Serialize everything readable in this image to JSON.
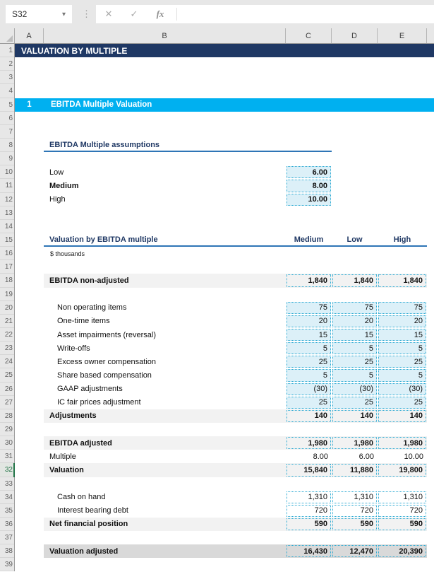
{
  "formula_bar": {
    "name_box": "S32",
    "cancel_icon": "✕",
    "confirm_icon": "✓",
    "fx_icon": "fx",
    "caret_icon": "▾",
    "dots_icon": "⋮",
    "formula_value": ""
  },
  "sheet": {
    "columns": [
      "A",
      "B",
      "C",
      "D",
      "E"
    ],
    "colors": {
      "title_banner": "#1F3864",
      "section_banner": "#00B0F0",
      "header_underline": "#2E75B6",
      "input_fill": "#DCF0F8",
      "dotted_border": "#2AA9D2",
      "subtotal_band": "#F2F2F2",
      "grand_band": "#D9D9D9",
      "selected_header_green": "#217346"
    },
    "rows": [
      {
        "n": "1",
        "type": "banner1",
        "label": "VALUATION BY MULTIPLE"
      },
      {
        "n": "2",
        "type": "empty"
      },
      {
        "n": "3",
        "type": "empty"
      },
      {
        "n": "4",
        "type": "empty"
      },
      {
        "n": "5",
        "type": "banner5",
        "num": "1",
        "label": "EBITDA Multiple Valuation"
      },
      {
        "n": "6",
        "type": "empty"
      },
      {
        "n": "7",
        "type": "empty"
      },
      {
        "n": "8",
        "type": "sheader",
        "label": "EBITDA Multiple assumptions"
      },
      {
        "n": "9",
        "type": "empty"
      },
      {
        "n": "10",
        "type": "assumption",
        "label": "Low",
        "bold": false,
        "values": [
          "6.00"
        ]
      },
      {
        "n": "11",
        "type": "assumption",
        "label": "Medium",
        "bold": true,
        "values": [
          "8.00"
        ]
      },
      {
        "n": "12",
        "type": "assumption",
        "label": "High",
        "bold": false,
        "values": [
          "10.00"
        ]
      },
      {
        "n": "13",
        "type": "empty"
      },
      {
        "n": "14",
        "type": "empty"
      },
      {
        "n": "15",
        "type": "theader",
        "label": "Valuation by EBITDA multiple",
        "cols": [
          "Medium",
          "Low",
          "High"
        ]
      },
      {
        "n": "16",
        "type": "unit",
        "label": "$ thousands"
      },
      {
        "n": "17",
        "type": "empty"
      },
      {
        "n": "18",
        "type": "subtotal",
        "label": "EBITDA non-adjusted",
        "values": [
          "1,840",
          "1,840",
          "1,840"
        ]
      },
      {
        "n": "19",
        "type": "empty"
      },
      {
        "n": "20",
        "type": "input",
        "label": "Non operating items",
        "values": [
          "75",
          "75",
          "75"
        ]
      },
      {
        "n": "21",
        "type": "input",
        "label": "One-time items",
        "values": [
          "20",
          "20",
          "20"
        ]
      },
      {
        "n": "22",
        "type": "input",
        "label": "Asset impairments (reversal)",
        "values": [
          "15",
          "15",
          "15"
        ]
      },
      {
        "n": "23",
        "type": "input",
        "label": "Write-offs",
        "values": [
          "5",
          "5",
          "5"
        ]
      },
      {
        "n": "24",
        "type": "input",
        "label": "Excess owner compensation",
        "values": [
          "25",
          "25",
          "25"
        ]
      },
      {
        "n": "25",
        "type": "input",
        "label": "Share based compensation",
        "values": [
          "5",
          "5",
          "5"
        ]
      },
      {
        "n": "26",
        "type": "input",
        "label": "GAAP adjustments",
        "values": [
          "(30)",
          "(30)",
          "(30)"
        ]
      },
      {
        "n": "27",
        "type": "input",
        "label": "IC fair prices adjustment",
        "values": [
          "25",
          "25",
          "25"
        ]
      },
      {
        "n": "28",
        "type": "subtotal",
        "label": "Adjustments",
        "values": [
          "140",
          "140",
          "140"
        ]
      },
      {
        "n": "29",
        "type": "empty"
      },
      {
        "n": "30",
        "type": "subtotal",
        "label": "EBITDA adjusted",
        "values": [
          "1,980",
          "1,980",
          "1,980"
        ]
      },
      {
        "n": "31",
        "type": "plain",
        "label": "Multiple",
        "values": [
          "8.00",
          "6.00",
          "10.00"
        ]
      },
      {
        "n": "32",
        "type": "subtotal",
        "label": "Valuation",
        "values": [
          "15,840",
          "11,880",
          "19,800"
        ],
        "selected": true
      },
      {
        "n": "33",
        "type": "empty"
      },
      {
        "n": "34",
        "type": "calc",
        "label": "Cash on hand",
        "values": [
          "1,310",
          "1,310",
          "1,310"
        ]
      },
      {
        "n": "35",
        "type": "calc",
        "label": "Interest bearing debt",
        "values": [
          "720",
          "720",
          "720"
        ]
      },
      {
        "n": "36",
        "type": "subtotal",
        "label": "Net financial position",
        "values": [
          "590",
          "590",
          "590"
        ]
      },
      {
        "n": "37",
        "type": "empty"
      },
      {
        "n": "38",
        "type": "grand",
        "label": "Valuation adjusted",
        "values": [
          "16,430",
          "12,470",
          "20,390"
        ]
      },
      {
        "n": "39",
        "type": "empty"
      }
    ]
  }
}
